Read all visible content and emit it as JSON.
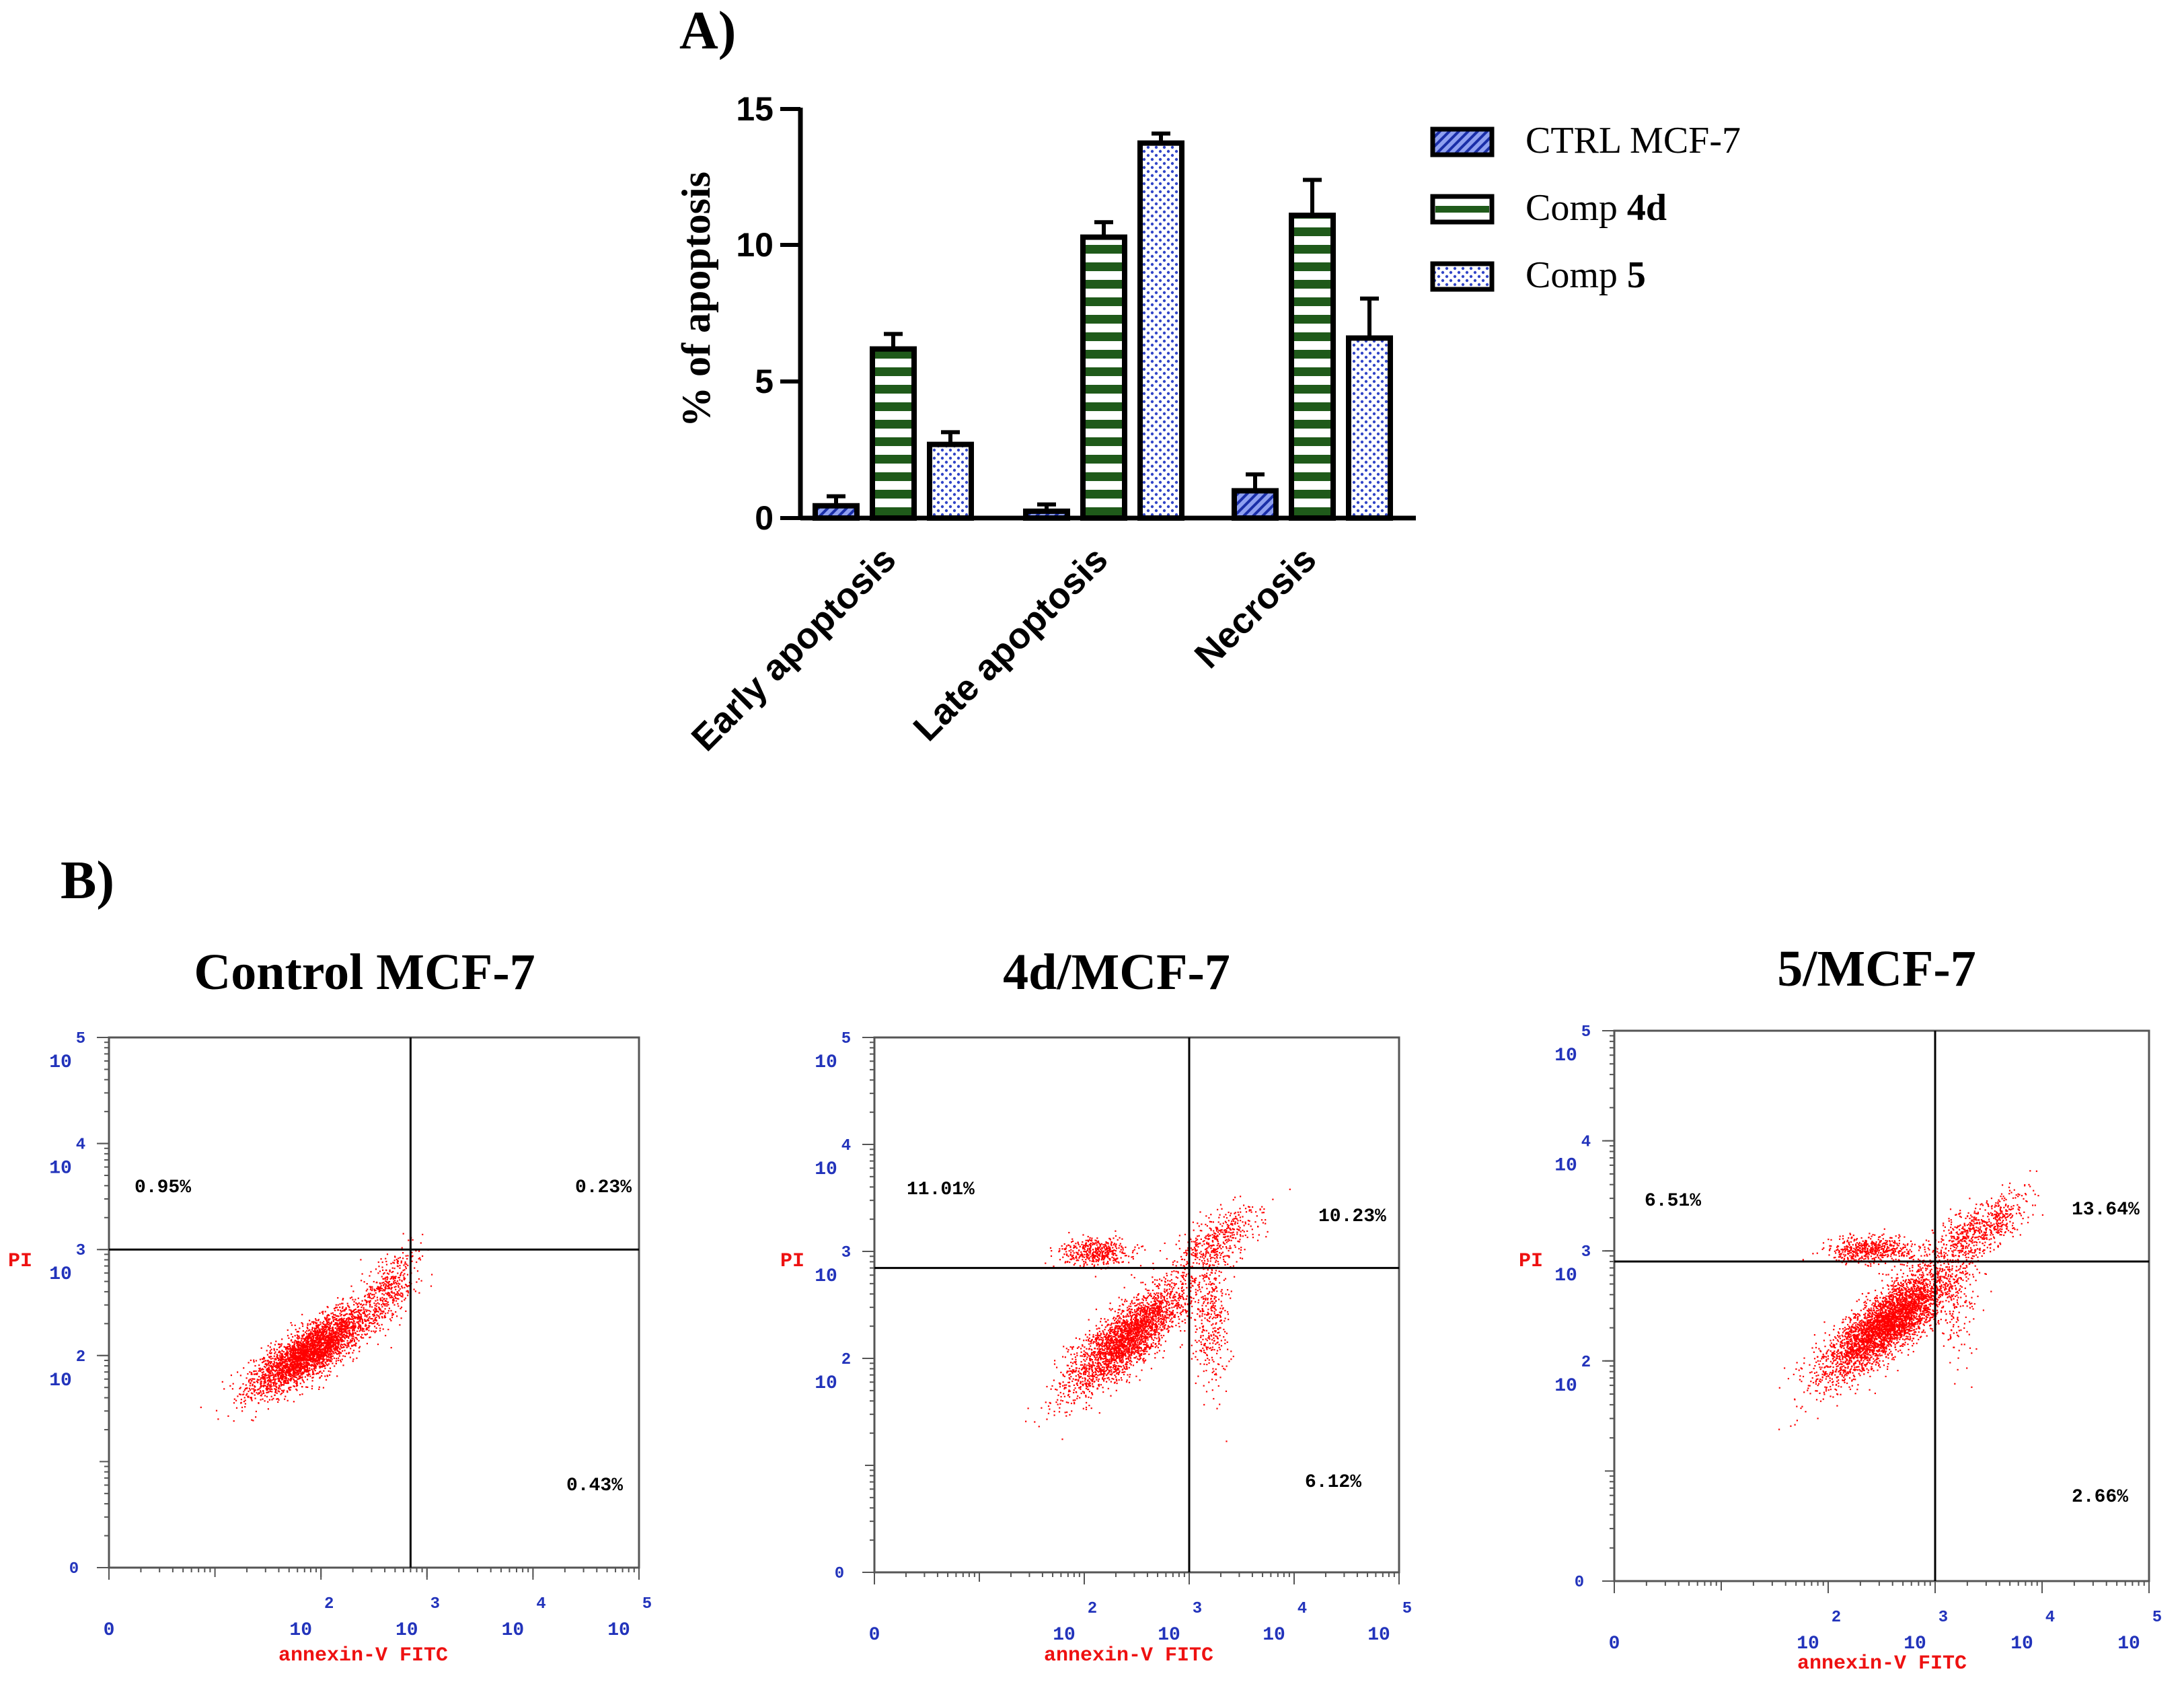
{
  "panel_a_label": "A)",
  "panel_b_label": "B)",
  "chart_data": [
    {
      "type": "bar",
      "title": "",
      "xlabel": "",
      "ylabel": "% of apoptosis",
      "ylim": [
        0,
        15
      ],
      "yticks": [
        "0",
        "5",
        "10",
        "15"
      ],
      "categories": [
        "Early apoptosis",
        "Late apoptosis",
        "Necrosis"
      ],
      "legend_position": "right",
      "series": [
        {
          "name": "CTRL MCF-7",
          "name_prefix": "CTRL MCF-7",
          "name_bold": "",
          "color": "#2b3bb0",
          "pattern": "diagonal-hatch",
          "values": [
            0.45,
            0.25,
            1.0
          ],
          "errors": [
            0.35,
            0.25,
            0.6
          ]
        },
        {
          "name": "Comp 4d",
          "name_prefix": "Comp ",
          "name_bold": "4d",
          "color": "#1f5a1a",
          "pattern": "horizontal-stripes",
          "values": [
            6.2,
            10.3,
            11.1
          ],
          "errors": [
            0.55,
            0.55,
            1.3
          ]
        },
        {
          "name": "Comp 5",
          "name_prefix": "Comp ",
          "name_bold": "5",
          "color": "#3246c8",
          "pattern": "dots",
          "values": [
            2.7,
            13.75,
            6.6
          ],
          "errors": [
            0.45,
            0.35,
            1.45
          ]
        }
      ]
    },
    {
      "type": "scatter",
      "title": "Control MCF-7",
      "xlabel": "annexin-V FITC",
      "ylabel": "PI",
      "xscale": "log",
      "yscale": "log",
      "xlim": [
        1,
        100000
      ],
      "ylim": [
        1,
        100000
      ],
      "x_tick_exponents": [
        "0",
        "2",
        "3",
        "4",
        "5"
      ],
      "x_tick_bases": [
        "0",
        "10",
        "10",
        "10",
        "10"
      ],
      "y_tick_exponents": [
        "0",
        "2",
        "3",
        "4",
        "5"
      ],
      "y_tick_bases": [
        "0",
        "10",
        "10",
        "10",
        "10"
      ],
      "quadrant_gate": {
        "x": 700,
        "y": 1000
      },
      "quadrants": {
        "upper_left": "0.95%",
        "upper_right": "0.23%",
        "lower_right": "0.43%"
      },
      "point_color": "#ff0000",
      "clusters": [
        {
          "center": [
            1.9,
            2.05
          ],
          "sd": [
            0.28,
            0.2
          ],
          "corr": 0.8,
          "n": 3200
        },
        {
          "center": [
            2.65,
            2.65
          ],
          "sd": [
            0.14,
            0.17
          ],
          "corr": 0.5,
          "n": 400
        }
      ]
    },
    {
      "type": "scatter",
      "title": "4d/MCF-7",
      "xlabel": "annexin-V FITC",
      "ylabel": "PI",
      "xscale": "log",
      "yscale": "log",
      "xlim": [
        1,
        100000
      ],
      "ylim": [
        1,
        100000
      ],
      "x_tick_exponents": [
        "0",
        "2",
        "3",
        "4",
        "5"
      ],
      "x_tick_bases": [
        "0",
        "10",
        "10",
        "10",
        "10"
      ],
      "y_tick_exponents": [
        "0",
        "2",
        "3",
        "4",
        "5"
      ],
      "y_tick_bases": [
        "0",
        "10",
        "10",
        "10",
        "10"
      ],
      "quadrant_gate": {
        "x": 1000,
        "y": 700
      },
      "quadrants": {
        "upper_left": "11.01%",
        "upper_right": "10.23%",
        "lower_right": "6.12%"
      },
      "point_color": "#ff0000",
      "clusters": [
        {
          "center": [
            2.4,
            2.2
          ],
          "sd": [
            0.28,
            0.25
          ],
          "corr": 0.8,
          "n": 2700
        },
        {
          "center": [
            2.1,
            3.0
          ],
          "sd": [
            0.17,
            0.07
          ],
          "corr": 0.0,
          "n": 450
        },
        {
          "center": [
            3.25,
            3.1
          ],
          "sd": [
            0.2,
            0.16
          ],
          "corr": 0.6,
          "n": 450
        },
        {
          "center": [
            3.2,
            2.35
          ],
          "sd": [
            0.09,
            0.3
          ],
          "corr": 0.0,
          "n": 350
        }
      ]
    },
    {
      "type": "scatter",
      "title": "5/MCF-7",
      "xlabel": "annexin-V FITC",
      "ylabel": "PI",
      "xscale": "log",
      "yscale": "log",
      "xlim": [
        1,
        100000
      ],
      "ylim": [
        1,
        100000
      ],
      "x_tick_exponents": [
        "0",
        "2",
        "3",
        "4",
        "5"
      ],
      "x_tick_bases": [
        "0",
        "10",
        "10",
        "10",
        "10"
      ],
      "y_tick_exponents": [
        "0",
        "2",
        "3",
        "4",
        "5"
      ],
      "y_tick_bases": [
        "0",
        "10",
        "10",
        "10",
        "10"
      ],
      "quadrant_gate": {
        "x": 1000,
        "y": 800
      },
      "quadrants": {
        "upper_left": "6.51%",
        "upper_right": "13.64%",
        "lower_right": "2.66%"
      },
      "point_color": "#ff0000",
      "clusters": [
        {
          "center": [
            2.55,
            2.35
          ],
          "sd": [
            0.3,
            0.25
          ],
          "corr": 0.8,
          "n": 3800
        },
        {
          "center": [
            2.4,
            3.02
          ],
          "sd": [
            0.22,
            0.06
          ],
          "corr": 0.0,
          "n": 550
        },
        {
          "center": [
            3.4,
            3.2
          ],
          "sd": [
            0.22,
            0.16
          ],
          "corr": 0.65,
          "n": 650
        },
        {
          "center": [
            3.2,
            2.5
          ],
          "sd": [
            0.1,
            0.25
          ],
          "corr": 0.0,
          "n": 150
        }
      ]
    }
  ]
}
